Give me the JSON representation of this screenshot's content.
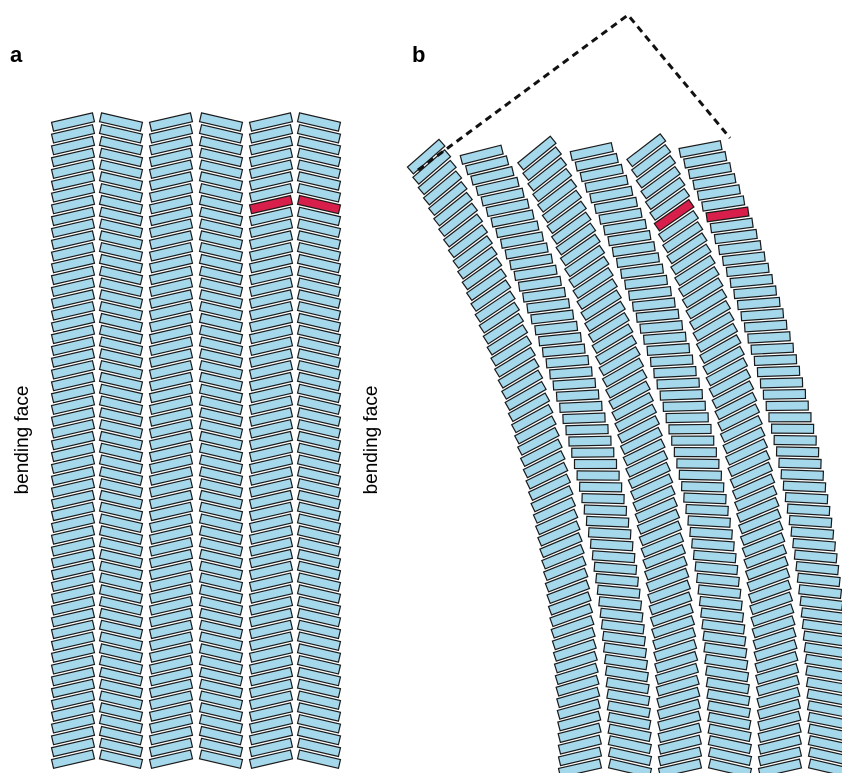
{
  "panels": [
    {
      "label": "a",
      "side_label": "bending face"
    },
    {
      "label": "b",
      "side_label": "bending face"
    }
  ]
}
